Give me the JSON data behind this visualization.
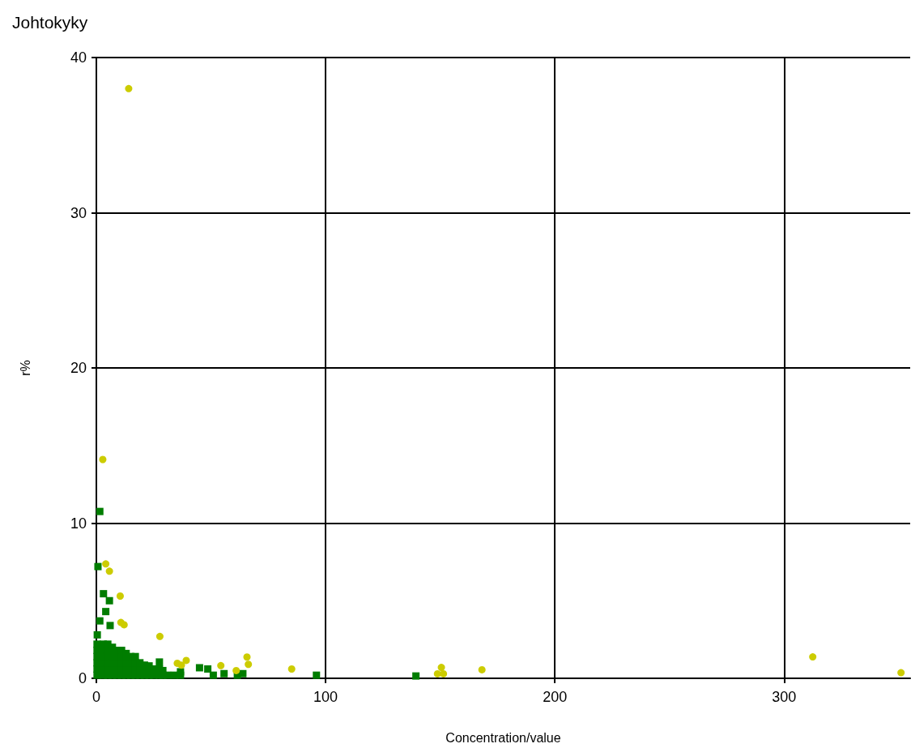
{
  "chart_data": {
    "type": "scatter",
    "title": "Johtokyky",
    "xlabel": "Concentration/value",
    "ylabel": "r%",
    "xlim": [
      0,
      355
    ],
    "xticks": [
      0,
      100,
      200,
      300
    ],
    "ylim": [
      0,
      40
    ],
    "yticks": [
      0,
      10,
      20,
      30,
      40
    ],
    "grid": true,
    "series": [
      {
        "color": "#007d00",
        "marker": "square",
        "x": [
          1.5,
          0.7,
          3.1,
          5.7,
          4.1,
          1.5,
          6.0,
          0.4,
          0.3,
          0.3,
          0.3,
          0.3,
          0.3,
          0.3,
          3,
          3,
          3,
          3,
          3,
          3,
          5,
          5,
          5,
          5,
          5,
          5,
          7,
          7,
          7,
          7,
          7,
          7,
          9,
          9,
          9,
          9,
          9,
          11,
          11,
          11,
          11,
          11,
          13,
          13,
          13,
          13,
          13,
          15,
          15,
          15,
          15,
          17,
          17,
          17,
          17,
          19,
          19,
          19,
          21,
          21,
          21,
          23,
          23,
          23,
          25,
          25,
          27.5,
          27.5,
          27.5,
          29,
          29,
          31,
          34,
          36.7,
          36.7,
          45,
          48.6,
          51,
          55.7,
          61.5,
          63.9,
          96,
          139.4
        ],
        "values": [
          10.75,
          7.2,
          5.45,
          5.0,
          4.3,
          3.7,
          3.4,
          2.8,
          0.2,
          0.6,
          1.0,
          1.4,
          1.8,
          2.2,
          0.2,
          0.6,
          1.0,
          1.4,
          1.8,
          2.2,
          0.2,
          0.6,
          1.0,
          1.4,
          1.8,
          2.2,
          0.2,
          0.6,
          1.0,
          1.4,
          1.8,
          2.0,
          0.2,
          0.6,
          1.0,
          1.4,
          1.8,
          0.2,
          0.6,
          1.0,
          1.4,
          1.8,
          0.2,
          0.6,
          1.0,
          1.4,
          1.6,
          0.2,
          0.6,
          1.0,
          1.4,
          0.2,
          0.6,
          1.0,
          1.4,
          0.2,
          0.6,
          1.0,
          0.2,
          0.6,
          0.85,
          0.2,
          0.6,
          0.8,
          0.2,
          0.6,
          0.2,
          0.6,
          1.05,
          0.2,
          0.5,
          0.2,
          0.2,
          0.2,
          0.42,
          0.68,
          0.6,
          0.2,
          0.3,
          0.2,
          0.3,
          0.2,
          0.15
        ]
      },
      {
        "color": "#cccc00",
        "marker": "circle",
        "x": [
          14.1,
          2.8,
          4.1,
          5.7,
          10.4,
          10.7,
          12.1,
          27.7,
          35.3,
          37.1,
          39.2,
          54.3,
          61,
          65.7,
          66.3,
          85.2,
          150.5,
          148.8,
          151.4,
          168.2,
          312.5,
          351
        ],
        "values": [
          38,
          14.1,
          7.37,
          6.9,
          5.3,
          3.6,
          3.45,
          2.7,
          0.97,
          0.85,
          1.15,
          0.82,
          0.5,
          1.37,
          0.9,
          0.6,
          0.7,
          0.29,
          0.29,
          0.55,
          1.38,
          0.36
        ]
      }
    ]
  }
}
